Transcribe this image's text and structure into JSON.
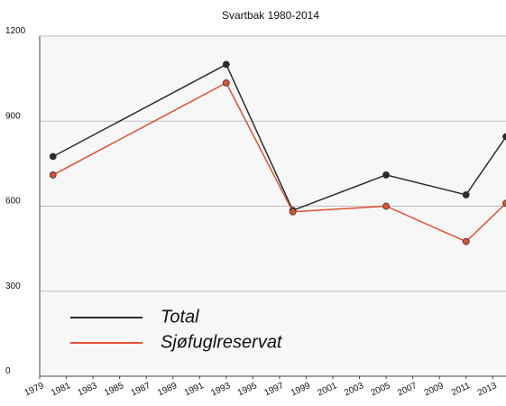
{
  "chart_data": {
    "type": "line",
    "title": "Svartbak 1980-2014",
    "x": [
      1980,
      1993,
      1998,
      2005,
      2011,
      2014
    ],
    "series": [
      {
        "name": "Total",
        "color": "#2b2b2b",
        "values": [
          775,
          1100,
          585,
          710,
          640,
          845
        ]
      },
      {
        "name": "Sjøfuglreservat",
        "color": "#e0502f",
        "values": [
          710,
          1035,
          580,
          600,
          475,
          610
        ]
      }
    ],
    "xlim": [
      1979,
      2014
    ],
    "xticks": [
      1979,
      1981,
      1983,
      1985,
      1987,
      1989,
      1991,
      1993,
      1995,
      1997,
      1999,
      2001,
      2003,
      2005,
      2007,
      2009,
      2011,
      2013
    ],
    "ylim": [
      0,
      1200
    ],
    "yticks": [
      0,
      300,
      600,
      900,
      1200
    ],
    "grid": true,
    "legend": "lower left"
  }
}
